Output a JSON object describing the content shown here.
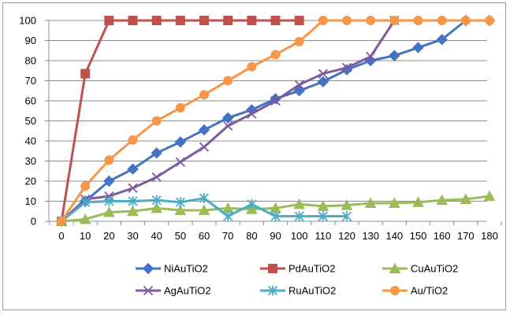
{
  "chart_data": {
    "type": "line",
    "title": "",
    "xlabel": "",
    "ylabel": "",
    "x": [
      0,
      10,
      20,
      30,
      40,
      50,
      60,
      70,
      80,
      90,
      100,
      110,
      120,
      130,
      140,
      150,
      160,
      170,
      180
    ],
    "xlim": [
      0,
      180
    ],
    "ylim": [
      0,
      100
    ],
    "yticks": [
      0,
      10,
      20,
      30,
      40,
      50,
      60,
      70,
      80,
      90,
      100
    ],
    "grid": "horizontal major gridlines",
    "legend_position": "bottom",
    "series": [
      {
        "name": "NiAuTiO2",
        "color": "#4472C4",
        "marker": "diamond",
        "x": [
          0,
          10,
          20,
          30,
          40,
          50,
          60,
          70,
          80,
          90,
          100,
          110,
          120,
          130,
          140,
          150,
          160,
          170,
          180
        ],
        "values": [
          0,
          10,
          20,
          26,
          34,
          39.5,
          45.5,
          51.5,
          55.5,
          61,
          65,
          69.5,
          75.5,
          80,
          82.5,
          86.5,
          90.5,
          100,
          100
        ]
      },
      {
        "name": "PdAuTiO2",
        "color": "#C0504D",
        "marker": "square",
        "x": [
          0,
          10,
          20,
          30,
          40,
          50,
          60,
          70,
          80,
          90,
          100
        ],
        "values": [
          0,
          73.5,
          100,
          100,
          100,
          100,
          100,
          100,
          100,
          100,
          100
        ]
      },
      {
        "name": "CuAuTiO2",
        "color": "#9BBB59",
        "marker": "triangle",
        "x": [
          0,
          10,
          20,
          30,
          40,
          50,
          60,
          70,
          80,
          90,
          100,
          110,
          120,
          130,
          140,
          150,
          160,
          170,
          180
        ],
        "values": [
          0,
          1,
          4.5,
          5,
          6.5,
          5.5,
          5.5,
          6.5,
          6,
          6.5,
          8.5,
          7.5,
          8,
          9,
          9,
          9.5,
          10.5,
          11,
          12.5
        ]
      },
      {
        "name": "AgAuTiO2",
        "color": "#7E5B9C",
        "marker": "x",
        "x": [
          0,
          10,
          20,
          30,
          40,
          50,
          60,
          70,
          80,
          90,
          100,
          110,
          120,
          130,
          140
        ],
        "values": [
          0,
          11,
          12.5,
          16.5,
          22,
          29.5,
          37,
          47.5,
          53.5,
          60,
          68,
          73.5,
          76.5,
          82,
          100
        ]
      },
      {
        "name": "RuAuTiO2",
        "color": "#4BACC6",
        "marker": "asterisk",
        "x": [
          0,
          10,
          20,
          30,
          40,
          50,
          60,
          70,
          80,
          90,
          100,
          110,
          120
        ],
        "values": [
          0,
          9.5,
          10,
          10,
          10.5,
          9.5,
          11.5,
          2.5,
          8.5,
          2.5,
          2.5,
          2.5,
          2.5
        ]
      },
      {
        "name": "Au/TiO2",
        "color": "#F79646",
        "marker": "circle",
        "x": [
          0,
          10,
          20,
          30,
          40,
          50,
          60,
          70,
          80,
          90,
          100,
          110,
          120,
          130,
          140,
          150,
          160,
          170,
          180
        ],
        "values": [
          0,
          17.5,
          30.5,
          40.5,
          50,
          56.5,
          63,
          70,
          77,
          83,
          89.5,
          100,
          100,
          100,
          100,
          100,
          100,
          100,
          100
        ]
      }
    ]
  }
}
